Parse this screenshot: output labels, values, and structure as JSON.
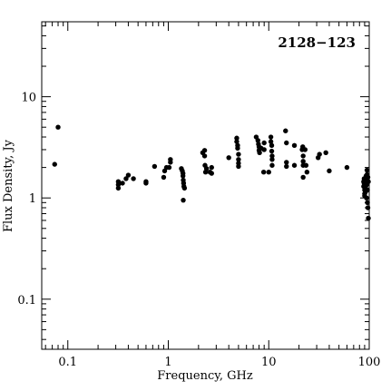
{
  "chart_data": {
    "type": "scatter",
    "title": "",
    "annotation": "2128−123",
    "xlabel": "Frequency, GHz",
    "ylabel": "Flux Density, Jy",
    "xscale": "log",
    "yscale": "log",
    "xlim": [
      0.055,
      100
    ],
    "ylim": [
      0.032,
      55
    ],
    "xticks": [
      {
        "value": 0.1,
        "label": "0.1"
      },
      {
        "value": 1,
        "label": "1"
      },
      {
        "value": 10,
        "label": "10"
      },
      {
        "value": 100,
        "label": "100"
      }
    ],
    "yticks": [
      {
        "value": 0.1,
        "label": "0.1"
      },
      {
        "value": 1,
        "label": "1"
      },
      {
        "value": 10,
        "label": "10"
      }
    ],
    "marker_color": "#000000",
    "grid": false,
    "points": [
      [
        0.074,
        2.15
      ],
      [
        0.08,
        5.0
      ],
      [
        0.318,
        1.45
      ],
      [
        0.318,
        1.35
      ],
      [
        0.318,
        1.25
      ],
      [
        0.35,
        1.4
      ],
      [
        0.38,
        1.55
      ],
      [
        0.4,
        1.68
      ],
      [
        0.45,
        1.55
      ],
      [
        0.6,
        1.45
      ],
      [
        0.6,
        1.4
      ],
      [
        0.73,
        2.05
      ],
      [
        0.9,
        1.6
      ],
      [
        0.92,
        1.85
      ],
      [
        0.96,
        2.0
      ],
      [
        1.02,
        2.0
      ],
      [
        1.05,
        2.4
      ],
      [
        1.05,
        2.25
      ],
      [
        1.35,
        1.95
      ],
      [
        1.38,
        1.85
      ],
      [
        1.4,
        1.75
      ],
      [
        1.4,
        1.65
      ],
      [
        1.41,
        1.5
      ],
      [
        1.42,
        1.4
      ],
      [
        1.43,
        1.3
      ],
      [
        1.41,
        0.95
      ],
      [
        1.45,
        1.25
      ],
      [
        2.2,
        2.8
      ],
      [
        2.3,
        2.95
      ],
      [
        2.3,
        2.6
      ],
      [
        2.32,
        2.1
      ],
      [
        2.35,
        1.8
      ],
      [
        2.4,
        1.95
      ],
      [
        2.6,
        1.8
      ],
      [
        2.7,
        2.0
      ],
      [
        2.7,
        1.75
      ],
      [
        4.0,
        2.5
      ],
      [
        4.8,
        3.9
      ],
      [
        4.8,
        3.6
      ],
      [
        4.9,
        3.3
      ],
      [
        4.9,
        3.1
      ],
      [
        5.0,
        2.7
      ],
      [
        5.0,
        2.4
      ],
      [
        5.0,
        2.2
      ],
      [
        5.0,
        2.05
      ],
      [
        7.5,
        4.0
      ],
      [
        7.8,
        3.7
      ],
      [
        7.9,
        3.4
      ],
      [
        8.0,
        3.2
      ],
      [
        8.0,
        2.95
      ],
      [
        8.1,
        2.8
      ],
      [
        8.4,
        3.1
      ],
      [
        8.9,
        1.8
      ],
      [
        9.0,
        3.5
      ],
      [
        9.0,
        3.0
      ],
      [
        10.5,
        4.0
      ],
      [
        10.5,
        3.6
      ],
      [
        10.7,
        3.3
      ],
      [
        10.7,
        2.9
      ],
      [
        10.8,
        2.6
      ],
      [
        10.8,
        2.4
      ],
      [
        10.8,
        2.1
      ],
      [
        10.0,
        1.8
      ],
      [
        14.7,
        4.6
      ],
      [
        15.0,
        3.5
      ],
      [
        15.0,
        2.25
      ],
      [
        15.0,
        2.05
      ],
      [
        18.0,
        3.3
      ],
      [
        18.0,
        2.1
      ],
      [
        21.5,
        3.0
      ],
      [
        21.8,
        3.2
      ],
      [
        22.0,
        2.6
      ],
      [
        22.0,
        2.3
      ],
      [
        22.0,
        2.1
      ],
      [
        22.0,
        1.6
      ],
      [
        23.0,
        3.0
      ],
      [
        23.5,
        2.1
      ],
      [
        24.0,
        1.8
      ],
      [
        31.0,
        2.5
      ],
      [
        32.0,
        2.7
      ],
      [
        37.0,
        2.8
      ],
      [
        40.0,
        1.85
      ],
      [
        60.0,
        2.0
      ],
      [
        88.0,
        1.45
      ],
      [
        88.0,
        1.3
      ],
      [
        89.0,
        1.55
      ],
      [
        89.0,
        1.4
      ],
      [
        90.0,
        1.2
      ],
      [
        90.0,
        1.1
      ],
      [
        90.0,
        1.05
      ],
      [
        92.0,
        1.25
      ],
      [
        92.0,
        1.15
      ],
      [
        94.0,
        1.5
      ],
      [
        94.0,
        1.35
      ],
      [
        94.0,
        1.0
      ],
      [
        95.0,
        1.7
      ],
      [
        95.0,
        1.88
      ],
      [
        96.0,
        1.2
      ],
      [
        96.0,
        0.9
      ],
      [
        97.0,
        1.6
      ],
      [
        97.0,
        0.8
      ],
      [
        98.0,
        0.63
      ],
      [
        98.0,
        1.45
      ],
      [
        93.0,
        1.65
      ]
    ]
  }
}
